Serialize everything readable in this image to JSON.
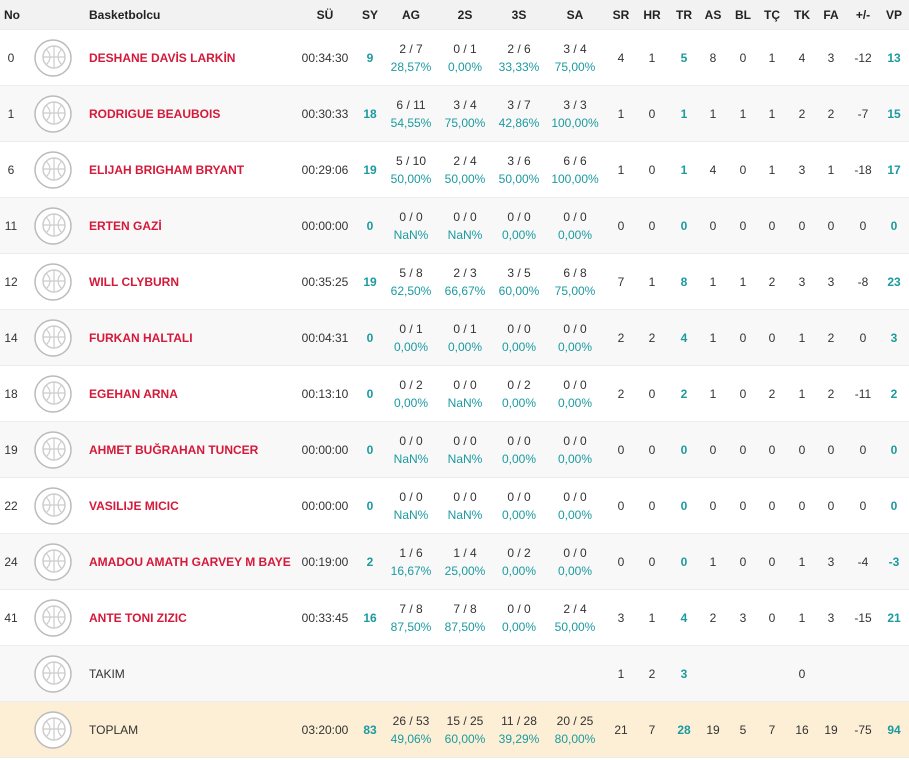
{
  "table": {
    "columns": [
      "No",
      "Basketbolcu",
      "SÜ",
      "SY",
      "AG",
      "2S",
      "3S",
      "SA",
      "SR",
      "HR",
      "TR",
      "AS",
      "BL",
      "TÇ",
      "TK",
      "FA",
      "+/-",
      "VP"
    ],
    "rows": [
      [
        0,
        "DESHANE DAVİS LARKİN",
        "00:34:30",
        9,
        [
          "2 / 7",
          "28,57%"
        ],
        [
          "0 / 1",
          "0,00%"
        ],
        [
          "2 / 6",
          "33,33%"
        ],
        [
          "3 / 4",
          "75,00%"
        ],
        4,
        1,
        5,
        8,
        0,
        1,
        4,
        3,
        -12,
        13
      ],
      [
        1,
        "RODRIGUE BEAUBOIS",
        "00:30:33",
        18,
        [
          "6 / 11",
          "54,55%"
        ],
        [
          "3 / 4",
          "75,00%"
        ],
        [
          "3 / 7",
          "42,86%"
        ],
        [
          "3 / 3",
          "100,00%"
        ],
        1,
        0,
        1,
        1,
        1,
        1,
        2,
        2,
        -7,
        15
      ],
      [
        6,
        "ELIJAH BRIGHAM BRYANT",
        "00:29:06",
        19,
        [
          "5 / 10",
          "50,00%"
        ],
        [
          "2 / 4",
          "50,00%"
        ],
        [
          "3 / 6",
          "50,00%"
        ],
        [
          "6 / 6",
          "100,00%"
        ],
        1,
        0,
        1,
        4,
        0,
        1,
        3,
        1,
        -18,
        17
      ],
      [
        11,
        "ERTEN GAZİ",
        "00:00:00",
        0,
        [
          "0 / 0",
          "NaN%"
        ],
        [
          "0 / 0",
          "NaN%"
        ],
        [
          "0 / 0",
          "0,00%"
        ],
        [
          "0 / 0",
          "0,00%"
        ],
        0,
        0,
        0,
        0,
        0,
        0,
        0,
        0,
        0,
        0
      ],
      [
        12,
        "WILL CLYBURN",
        "00:35:25",
        19,
        [
          "5 / 8",
          "62,50%"
        ],
        [
          "2 / 3",
          "66,67%"
        ],
        [
          "3 / 5",
          "60,00%"
        ],
        [
          "6 / 8",
          "75,00%"
        ],
        7,
        1,
        8,
        1,
        1,
        2,
        3,
        3,
        -8,
        23
      ],
      [
        14,
        "FURKAN HALTALI",
        "00:04:31",
        0,
        [
          "0 / 1",
          "0,00%"
        ],
        [
          "0 / 1",
          "0,00%"
        ],
        [
          "0 / 0",
          "0,00%"
        ],
        [
          "0 / 0",
          "0,00%"
        ],
        2,
        2,
        4,
        1,
        0,
        0,
        1,
        2,
        0,
        3
      ],
      [
        18,
        "EGEHAN ARNA",
        "00:13:10",
        0,
        [
          "0 / 2",
          "0,00%"
        ],
        [
          "0 / 0",
          "NaN%"
        ],
        [
          "0 / 2",
          "0,00%"
        ],
        [
          "0 / 0",
          "0,00%"
        ],
        2,
        0,
        2,
        1,
        0,
        2,
        1,
        2,
        -11,
        2
      ],
      [
        19,
        "AHMET BUĞRAHAN TUNCER",
        "00:00:00",
        0,
        [
          "0 / 0",
          "NaN%"
        ],
        [
          "0 / 0",
          "NaN%"
        ],
        [
          "0 / 0",
          "0,00%"
        ],
        [
          "0 / 0",
          "0,00%"
        ],
        0,
        0,
        0,
        0,
        0,
        0,
        0,
        0,
        0,
        0
      ],
      [
        22,
        "VASILIJE MICIC",
        "00:00:00",
        0,
        [
          "0 / 0",
          "NaN%"
        ],
        [
          "0 / 0",
          "NaN%"
        ],
        [
          "0 / 0",
          "0,00%"
        ],
        [
          "0 / 0",
          "0,00%"
        ],
        0,
        0,
        0,
        0,
        0,
        0,
        0,
        0,
        0,
        0
      ],
      [
        24,
        "AMADOU AMATH GARVEY M BAYE",
        "00:19:00",
        2,
        [
          "1 / 6",
          "16,67%"
        ],
        [
          "1 / 4",
          "25,00%"
        ],
        [
          "0 / 2",
          "0,00%"
        ],
        [
          "0 / 0",
          "0,00%"
        ],
        0,
        0,
        0,
        1,
        0,
        0,
        1,
        3,
        -4,
        -3
      ],
      [
        41,
        "ANTE TONI ZIZIC",
        "00:33:45",
        16,
        [
          "7 / 8",
          "87,50%"
        ],
        [
          "7 / 8",
          "87,50%"
        ],
        [
          "0 / 0",
          "0,00%"
        ],
        [
          "2 / 4",
          "50,00%"
        ],
        3,
        1,
        4,
        2,
        3,
        0,
        1,
        3,
        -15,
        21
      ],
      [
        null,
        "TAKIM",
        null,
        null,
        null,
        null,
        null,
        null,
        1,
        2,
        3,
        null,
        null,
        null,
        0,
        null,
        null,
        null
      ],
      [
        null,
        "TOPLAM",
        "03:20:00",
        83,
        [
          "26 / 53",
          "49,06%"
        ],
        [
          "15 / 25",
          "60,00%"
        ],
        [
          "11 / 28",
          "39,29%"
        ],
        [
          "20 / 25",
          "80,00%"
        ],
        21,
        7,
        28,
        19,
        5,
        7,
        16,
        19,
        -75,
        94
      ]
    ]
  }
}
